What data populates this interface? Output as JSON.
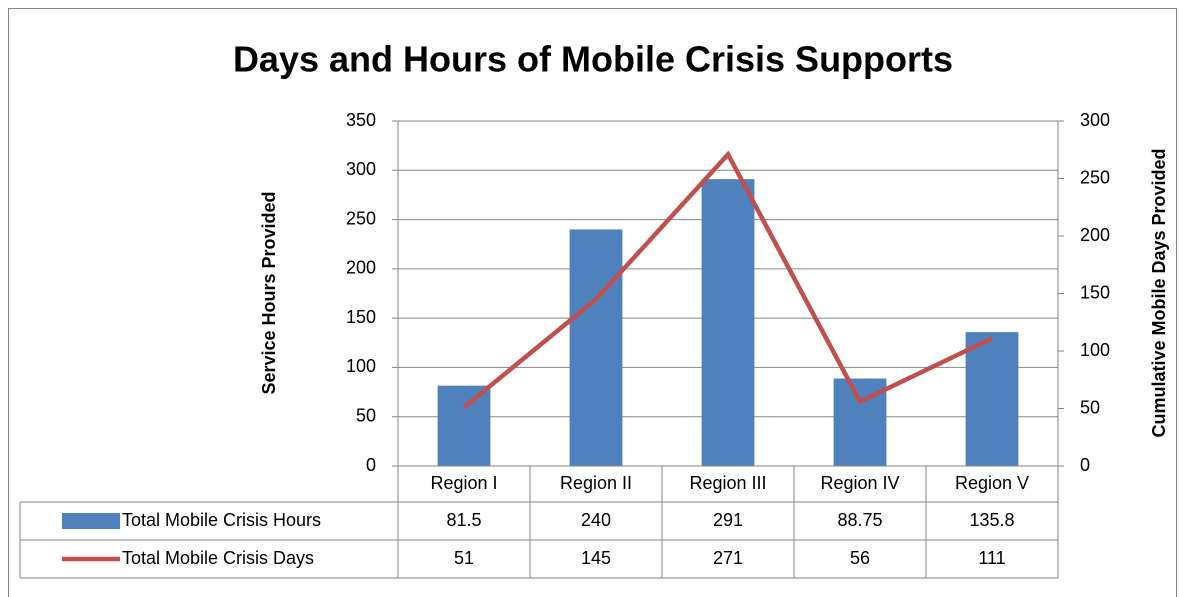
{
  "chart_data": {
    "type": "bar",
    "title": "Days and Hours of Mobile Crisis Supports",
    "categories": [
      "Region I",
      "Region II",
      "Region III",
      "Region IV",
      "Region V"
    ],
    "series": [
      {
        "name": "Total Mobile Crisis Hours",
        "type": "bar",
        "color": "#4f81bd",
        "values": [
          81.5,
          240,
          291,
          88.75,
          135.8
        ]
      },
      {
        "name": "Total Mobile Crisis Days",
        "type": "line",
        "axis": "y2",
        "color": "#c0504d",
        "values": [
          51,
          145,
          271,
          56,
          111
        ]
      }
    ],
    "y_label": "Service Hours Provided",
    "y2_label": "Cumulative Mobile Days Provided",
    "ylim": [
      0,
      350
    ],
    "yticks": [
      0,
      50,
      100,
      150,
      200,
      250,
      300,
      350
    ],
    "y2lim": [
      0,
      300
    ],
    "y2ticks": [
      0,
      50,
      100,
      150,
      200,
      250,
      300
    ],
    "grid": true
  }
}
